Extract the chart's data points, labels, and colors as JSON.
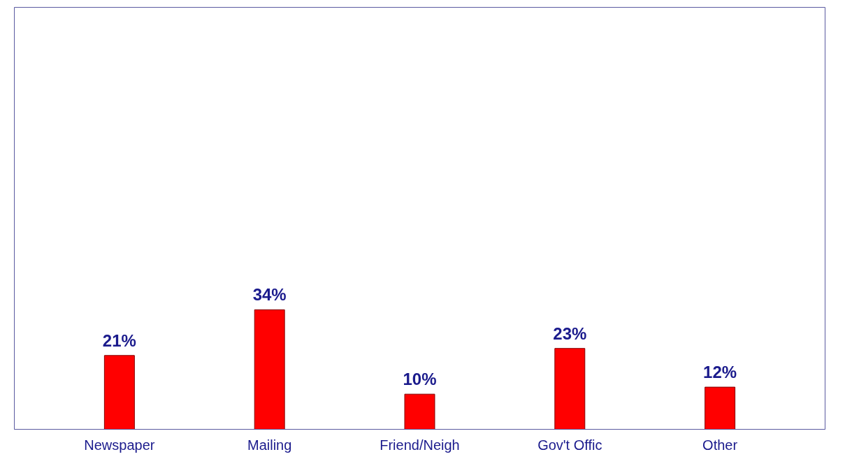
{
  "chart_data": {
    "type": "bar",
    "categories": [
      "Newspaper",
      "Mailing",
      "Friend/Neigh",
      "Gov't Offic",
      "Other"
    ],
    "values": [
      21,
      34,
      10,
      23,
      12
    ],
    "color": "#ff0000",
    "data_labels": true,
    "value_labels": [
      "21%",
      "34%",
      "10%",
      "23%",
      "12%"
    ],
    "ylim": [
      0,
      120
    ],
    "tick_labels": "x",
    "grid": false
  }
}
